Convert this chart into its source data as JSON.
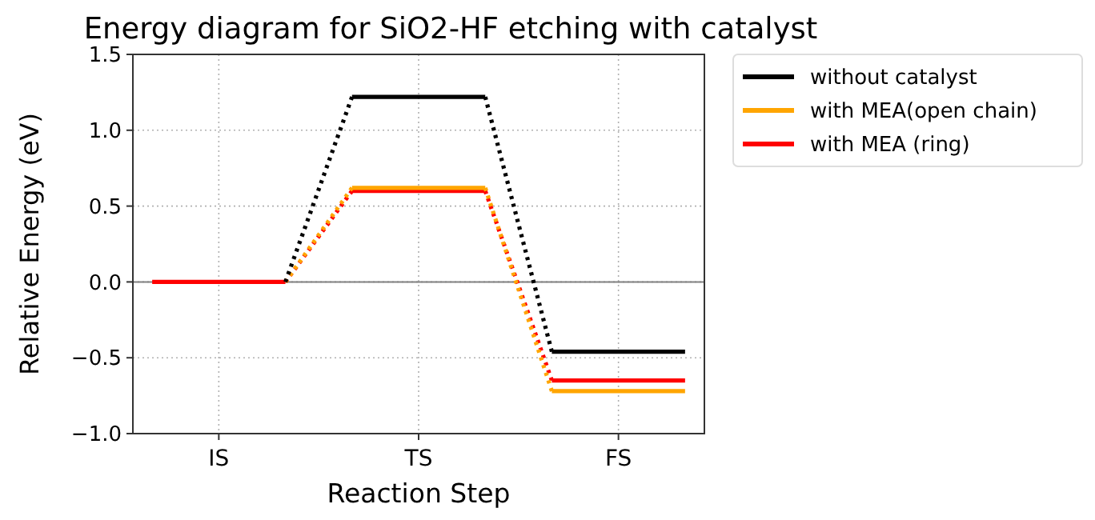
{
  "chart_data": {
    "type": "line",
    "title": "Energy diagram for SiO2-HF etching with catalyst",
    "xlabel": "Reaction Step",
    "ylabel": "Relative Energy (eV)",
    "categories": [
      null,
      "IS",
      null,
      null,
      "TS",
      null,
      null,
      "FS",
      null
    ],
    "series": [
      {
        "name": "without catalyst",
        "color": "#000000",
        "values": [
          null,
          null,
          0,
          1.22,
          1.22,
          1.22,
          -0.46,
          -0.46,
          -0.46
        ]
      },
      {
        "name": "with MEA(open chain)",
        "color": "#ffa500",
        "values": [
          null,
          null,
          0,
          0.62,
          0.62,
          0.62,
          -0.72,
          -0.72,
          -0.72
        ]
      },
      {
        "name": "with MEA (ring)",
        "color": "#ff0000",
        "values": [
          0,
          0,
          0,
          0.6,
          0.6,
          0.6,
          -0.65,
          -0.65,
          -0.65
        ]
      }
    ],
    "ylim": [
      -1.0,
      1.5
    ],
    "yticks": [
      {
        "value": -1.0,
        "label": "−1.0"
      },
      {
        "value": -0.5,
        "label": "−0.5"
      },
      {
        "value": 0,
        "label": "0.0"
      },
      {
        "value": 0.5,
        "label": "0.5"
      },
      {
        "value": 1.0,
        "label": "1.0"
      },
      {
        "value": 1.5,
        "label": "1.5"
      }
    ],
    "ref_lines": [
      {
        "axis": "y",
        "value": 0,
        "color": "#808080"
      }
    ],
    "grid": true,
    "legend": "right",
    "line_style": "dotted",
    "marker": "none"
  }
}
